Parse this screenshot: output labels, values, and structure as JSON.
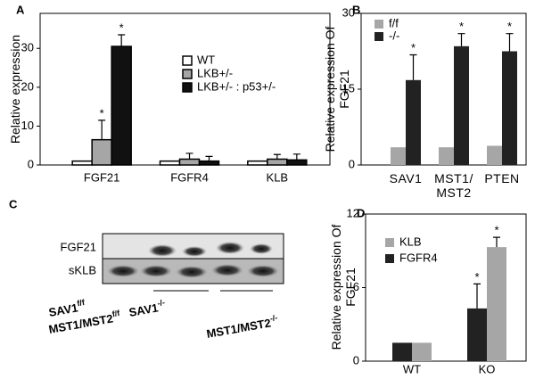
{
  "chart_data": [
    {
      "type": "bar",
      "label": "A",
      "ylabel": "Relative expression",
      "categories": [
        "FGF21",
        "FGFR4",
        "KLB"
      ],
      "series": [
        {
          "name": "WT",
          "color": "#ffffff",
          "values": [
            1,
            1,
            1
          ]
        },
        {
          "name": "LKB+/-",
          "color": "#a6a6a6",
          "values": [
            6.5,
            1.5,
            1.5
          ],
          "errors": [
            5,
            1.5,
            1.2
          ],
          "stars": [
            "*",
            null,
            null
          ]
        },
        {
          "name": "LKB+/- : p53+/-",
          "color": "#111111",
          "values": [
            30.5,
            1,
            1.3
          ],
          "errors": [
            3,
            1.2,
            1.5
          ],
          "stars": [
            "*",
            null,
            null
          ]
        }
      ],
      "edgecolor": "#000000",
      "ylim": [
        0,
        39
      ],
      "yticks": [
        0,
        10,
        20,
        30
      ],
      "legend": "center-right"
    },
    {
      "type": "bar",
      "label": "B",
      "ylabel": "Relative expression Of FGF21",
      "categories": [
        "SAV1",
        "MST1/ MST2",
        "PTEN"
      ],
      "series": [
        {
          "name": "f/f",
          "color": "#a6a6a6",
          "values": [
            3.5,
            3.5,
            3.8
          ]
        },
        {
          "name": "-/-",
          "color": "#222222",
          "values": [
            16.8,
            23.5,
            22.5
          ],
          "errors": [
            5,
            2.5,
            3.5
          ],
          "stars": [
            "*",
            "*",
            "*"
          ]
        }
      ],
      "ylim": [
        0,
        30
      ],
      "yticks": [
        0,
        15,
        30
      ],
      "legend": "upper-left"
    },
    {
      "type": "blot",
      "label": "C",
      "rows": [
        "FGF21",
        "sKLB"
      ],
      "groups": [
        {
          "lines": [
            {
              "base": "SAV1",
              "sup": "f/f"
            },
            {
              "base": "MST1/MST2",
              "sup": "f/f"
            }
          ]
        },
        {
          "lines": [
            {
              "base": "SAV1",
              "sup": "-/-"
            }
          ]
        },
        {
          "lines": [
            {
              "base": "MST1/MST2",
              "sup": "-/-"
            }
          ]
        }
      ]
    },
    {
      "type": "bar",
      "label": "D",
      "ylabel": "Relative expression Of FGF21",
      "categories": [
        "WT",
        "KO"
      ],
      "series": [
        {
          "name": "FGFR4",
          "color": "#222222",
          "values": [
            1.5,
            4.3
          ],
          "errors": [
            null,
            2
          ],
          "stars": [
            null,
            "*"
          ]
        },
        {
          "name": "KLB",
          "color": "#a6a6a6",
          "values": [
            1.5,
            9.3
          ],
          "errors": [
            null,
            0.8
          ],
          "stars": [
            null,
            "*"
          ]
        }
      ],
      "ylim": [
        0,
        12
      ],
      "yticks": [
        0,
        6,
        12
      ],
      "legend": "upper-left",
      "legend_reversed": true
    }
  ]
}
